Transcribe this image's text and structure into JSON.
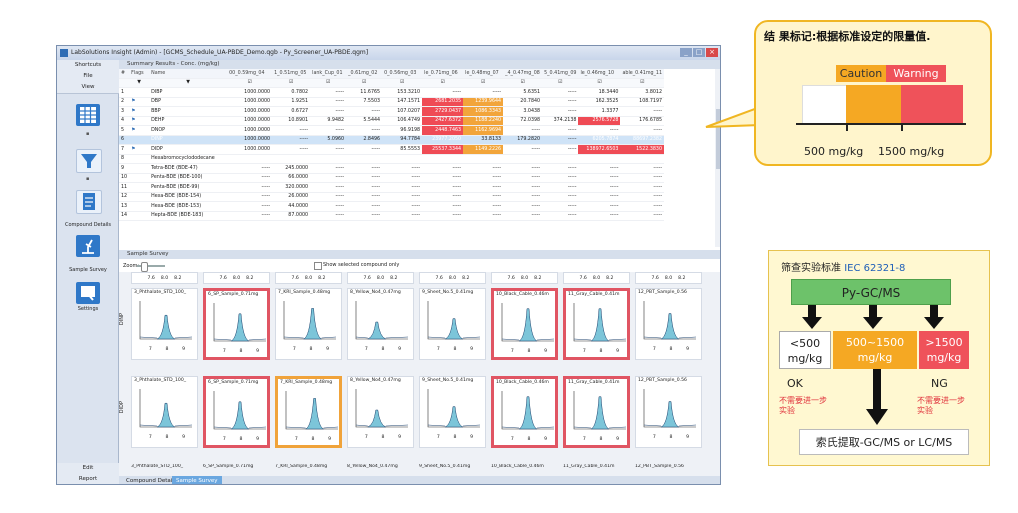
{
  "window": {
    "title": "LabSolutions Insight (Admin) - [GCMS_Schedule_UA-PBDE_Demo.qgb - Py_Screener_UA-PBDE.qgm]",
    "controls": [
      "_",
      "□",
      "×"
    ]
  },
  "sidebar": {
    "shortcuts": "Shortcuts",
    "file": "File",
    "view": "View",
    "icons": [
      {
        "name": "grid-icon",
        "label": ""
      },
      {
        "name": "filter-icon",
        "label": ""
      },
      {
        "name": "compound-details-icon",
        "label": "Compound Details"
      },
      {
        "name": "sample-survey-icon",
        "label": "Sample Survey"
      },
      {
        "name": "settings-icon",
        "label": "Settings"
      }
    ],
    "edit": "Edit",
    "report": "Report"
  },
  "summary": {
    "title": "Summary Results - Conc. (mg/kg)",
    "headers": [
      "#",
      "Flags",
      "Name",
      "00_0.59mg_04",
      "1_0.51mg_05",
      "lank_Cup_01",
      "_0.61mg_02",
      "0_0.56mg_03",
      "le_0.71mg_06",
      "le_0.48mg_07",
      "_4_0.47mg_08",
      "5_0.41mg_09",
      "le_0.46mg_10",
      "able_0.41mg_11"
    ],
    "rows": [
      {
        "n": "1",
        "flag": "",
        "name": "DIBP",
        "v": [
          "1000.0000",
          "0.7802",
          "-----",
          "11.6765",
          "153.3210",
          "-----",
          "-----",
          "5.6351",
          "-----",
          "18.3440",
          "3.8012"
        ],
        "c": [
          "",
          "",
          "",
          "",
          "",
          "",
          "",
          "",
          "",
          "",
          ""
        ]
      },
      {
        "n": "2",
        "flag": "⚑",
        "name": "DBP",
        "v": [
          "1000.0000",
          "1.9251",
          "-----",
          "7.5503",
          "147.1571",
          "2681.2035",
          "1239.9644",
          "20.7840",
          "-----",
          "162.3525",
          "108.7197"
        ],
        "c": [
          "",
          "",
          "",
          "",
          "",
          "red",
          "orange",
          "",
          "",
          "",
          ""
        ]
      },
      {
        "n": "3",
        "flag": "⚑",
        "name": "BBP",
        "v": [
          "1000.0000",
          "0.6727",
          "-----",
          "-----",
          "107.0207",
          "2729.0437",
          "1086.3343",
          "3.0438",
          "-----",
          "1.3377",
          "-----"
        ],
        "c": [
          "",
          "",
          "",
          "",
          "",
          "red",
          "orange",
          "",
          "",
          "",
          ""
        ]
      },
      {
        "n": "4",
        "flag": "⚑",
        "name": "DEHP",
        "v": [
          "1000.0000",
          "10.8901",
          "9.9482",
          "5.5444",
          "106.4749",
          "2427.6372",
          "1188.2240",
          "72.0398",
          "374.2138",
          "2576.5728",
          "176.6785"
        ],
        "c": [
          "",
          "",
          "",
          "",
          "",
          "red",
          "orange",
          "",
          "",
          "red",
          ""
        ]
      },
      {
        "n": "5",
        "flag": "⚑",
        "name": "DNOP",
        "v": [
          "1000.0000",
          "-----",
          "-----",
          "-----",
          "96.9198",
          "2448.7463",
          "1162.9694",
          "-----",
          "-----",
          "-----",
          "-----"
        ],
        "c": [
          "",
          "",
          "",
          "",
          "",
          "red",
          "orange",
          "",
          "",
          "",
          ""
        ]
      },
      {
        "n": "6",
        "flag": "",
        "name": "DINP",
        "v": [
          "1000.0000",
          "-----",
          "5.0960",
          "2.8496",
          "94.7784",
          "23977.2050",
          "33.8133",
          "179.2820",
          "-----",
          "6205.7874",
          "88697.2382"
        ],
        "c": [
          "grey",
          "",
          "",
          "",
          "",
          "red",
          "",
          "",
          "",
          "red",
          "red"
        ]
      },
      {
        "n": "7",
        "flag": "⚑",
        "name": "DIDP",
        "v": [
          "1000.0000",
          "-----",
          "-----",
          "-----",
          "85.5553",
          "25537.3344",
          "1149.2226",
          "-----",
          "-----",
          "138972.6503",
          "1522.3830"
        ],
        "c": [
          "",
          "",
          "",
          "",
          "",
          "red",
          "orange",
          "",
          "",
          "red",
          "red"
        ]
      },
      {
        "n": "8",
        "flag": "",
        "name": "Hexabromocyclododecane",
        "v": [
          "",
          "",
          "",
          "",
          "",
          "",
          "",
          "",
          "",
          "",
          ""
        ],
        "c": [
          "",
          "",
          "",
          "",
          "",
          "",
          "",
          "",
          "",
          "",
          ""
        ]
      },
      {
        "n": "9",
        "flag": "",
        "name": "Tetra-BDE (BDE-47)",
        "v": [
          "-----",
          "245.0000",
          "-----",
          "-----",
          "-----",
          "-----",
          "-----",
          "-----",
          "-----",
          "-----",
          "-----"
        ],
        "c": [
          "",
          "",
          "",
          "",
          "",
          "",
          "",
          "",
          "",
          "",
          ""
        ]
      },
      {
        "n": "10",
        "flag": "",
        "name": "Penta-BDE (BDE-100)",
        "v": [
          "-----",
          "66.0000",
          "-----",
          "-----",
          "-----",
          "-----",
          "-----",
          "-----",
          "-----",
          "-----",
          "-----"
        ],
        "c": [
          "",
          "",
          "",
          "",
          "",
          "",
          "",
          "",
          "",
          "",
          ""
        ]
      },
      {
        "n": "11",
        "flag": "",
        "name": "Penta-BDE (BDE-99)",
        "v": [
          "-----",
          "320.0000",
          "-----",
          "-----",
          "-----",
          "-----",
          "-----",
          "-----",
          "-----",
          "-----",
          "-----"
        ],
        "c": [
          "",
          "",
          "",
          "",
          "",
          "",
          "",
          "",
          "",
          "",
          ""
        ]
      },
      {
        "n": "12",
        "flag": "",
        "name": "Hexa-BDE (BDE-154)",
        "v": [
          "-----",
          "26.0000",
          "-----",
          "-----",
          "-----",
          "-----",
          "-----",
          "-----",
          "-----",
          "-----",
          "-----"
        ],
        "c": [
          "",
          "",
          "",
          "",
          "",
          "",
          "",
          "",
          "",
          "",
          ""
        ]
      },
      {
        "n": "13",
        "flag": "",
        "name": "Hexa-BDE (BDE-153)",
        "v": [
          "-----",
          "44.0000",
          "-----",
          "-----",
          "-----",
          "-----",
          "-----",
          "-----",
          "-----",
          "-----",
          "-----"
        ],
        "c": [
          "",
          "",
          "",
          "",
          "",
          "",
          "",
          "",
          "",
          "",
          ""
        ]
      },
      {
        "n": "14",
        "flag": "",
        "name": "Hepta-BDE (BDE-183)",
        "v": [
          "-----",
          "87.0000",
          "-----",
          "-----",
          "-----",
          "-----",
          "-----",
          "-----",
          "-----",
          "-----",
          "-----"
        ],
        "c": [
          "",
          "",
          "",
          "",
          "",
          "",
          "",
          "",
          "",
          "",
          ""
        ]
      }
    ]
  },
  "survey": {
    "title": "Sample Survey",
    "zoom_label": "Zoom:",
    "checkbox_label": "Show selected compound only",
    "row_labels": [
      "DINP",
      "DIDP"
    ],
    "samples": [
      "3_Phthalate_STD_100_",
      "6_SP_Sample_0.71mg",
      "7_KRI_Sample_0.48mg",
      "8_Yellow_No4_0.47mg",
      "9_Sheet_No.5_0.41mg",
      "10_Black_Cable_0.46m",
      "11_Gray_Cable_0.41m",
      "12_PBT_Sample_0.56"
    ],
    "row1_highlight": [
      "",
      "red",
      "",
      "",
      "",
      "red",
      "red",
      ""
    ],
    "row2_highlight": [
      "",
      "red",
      "orange",
      "",
      "",
      "red",
      "red",
      ""
    ],
    "x_ticks": [
      "7.6",
      "8.0",
      "8.2"
    ],
    "x_ticks2": [
      "7",
      "8",
      "9"
    ]
  },
  "tabs": [
    "Compound Details",
    "Sample Survey"
  ],
  "callout1": {
    "title": "结 果标记:根据标准设定的限量值.",
    "caution": "Caution",
    "warning": "Warning",
    "tick1": "500 mg/kg",
    "tick2": "1500 mg/kg",
    "colors": {
      "caution": "#f5a823",
      "warning": "#ef525a",
      "border": "#f0b622"
    }
  },
  "callout2": {
    "standard_prefix": "筛查实验标准",
    "standard_id": "IEC 62321-8",
    "method": "Py-GC/MS",
    "low": "<500\nmg/kg",
    "mid": "500~1500\nmg/kg",
    "high": ">1500\nmg/kg",
    "ok": "OK",
    "ng": "NG",
    "no_further_left": "不需要进一步\n实验",
    "no_further_right": "不需要进一步\n实验",
    "extraction": "索氏提取-GC/MS or LC/MS",
    "colors": {
      "green": "#6dc26a",
      "orange": "#f5a823",
      "red": "#ef525a",
      "blue": "#1f5fb8"
    }
  }
}
